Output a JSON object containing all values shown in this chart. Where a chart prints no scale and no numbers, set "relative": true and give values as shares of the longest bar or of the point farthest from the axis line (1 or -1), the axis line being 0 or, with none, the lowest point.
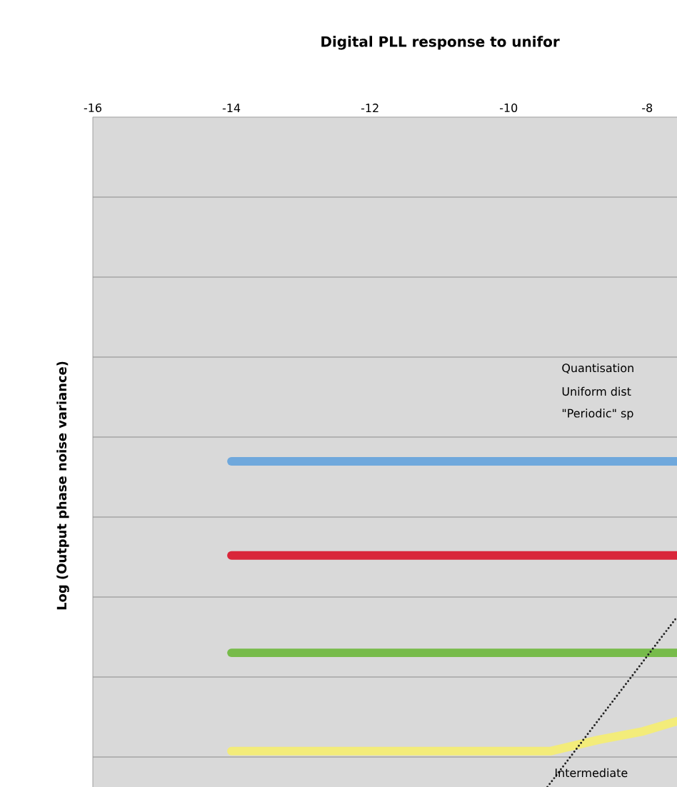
{
  "chart_data": {
    "type": "line",
    "title": "Digital PLL response to unifor",
    "ylabel": "Log (Output phase noise variance)",
    "relative": true,
    "grid": "y",
    "xlim": [
      -16,
      -7.57
    ],
    "xticks": [
      -16,
      -14,
      -12,
      -10,
      -8
    ],
    "tick_labels": "x",
    "line_style": "solid",
    "marker": "none",
    "annotations": [
      "Quantisation",
      "Uniform dist",
      "\"Periodic\" sp",
      "Intermediate"
    ],
    "series": [
      {
        "color": "#6fa8dc",
        "x": [
          -14,
          -7.57
        ],
        "values": [
          1,
          1
        ]
      },
      {
        "color": "#d9263a",
        "x": [
          -14,
          -7.57
        ],
        "values": [
          0.711,
          0.711
        ]
      },
      {
        "color": "#77bb4a",
        "x": [
          -14,
          -7.57
        ],
        "values": [
          0.412,
          0.412
        ]
      },
      {
        "color": "#f3ec7a",
        "x": [
          -14,
          -11,
          -9.4,
          -8.7,
          -8.06,
          -7.57
        ],
        "values": [
          0.11,
          0.11,
          0.11,
          0.145,
          0.171,
          0.202
        ]
      },
      {
        "color": "#222222",
        "line_style": "dotted",
        "x": [
          -9.44,
          -7.57
        ],
        "values": [
          0,
          0.522
        ]
      }
    ]
  }
}
